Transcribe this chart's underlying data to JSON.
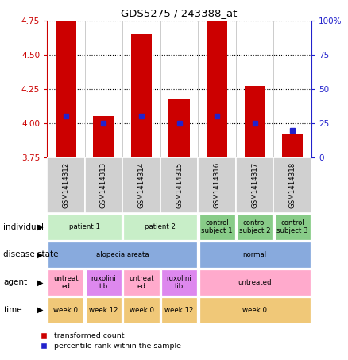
{
  "title": "GDS5275 / 243388_at",
  "samples": [
    "GSM1414312",
    "GSM1414313",
    "GSM1414314",
    "GSM1414315",
    "GSM1414316",
    "GSM1414317",
    "GSM1414318"
  ],
  "transformed_counts": [
    4.75,
    4.05,
    4.65,
    4.18,
    4.75,
    4.27,
    3.92
  ],
  "percentile_ranks": [
    30,
    25,
    30,
    25,
    30,
    25,
    20
  ],
  "ylim_left": [
    3.75,
    4.75
  ],
  "yticks_left": [
    3.75,
    4.0,
    4.25,
    4.5,
    4.75
  ],
  "ylim_right": [
    0,
    100
  ],
  "yticks_right": [
    0,
    25,
    50,
    75,
    100
  ],
  "bar_color": "#cc0000",
  "dot_color": "#2222cc",
  "bar_bottom": 3.75,
  "bar_width": 0.55,
  "sample_label_color": "#888888",
  "annotation_rows": [
    {
      "key": "individual",
      "label": "individual",
      "groups": [
        {
          "cols": [
            0,
            1
          ],
          "text": "patient 1",
          "color": "#c8eec8"
        },
        {
          "cols": [
            2,
            3
          ],
          "text": "patient 2",
          "color": "#c8eec8"
        },
        {
          "cols": [
            4
          ],
          "text": "control\nsubject 1",
          "color": "#88cc88"
        },
        {
          "cols": [
            5
          ],
          "text": "control\nsubject 2",
          "color": "#88cc88"
        },
        {
          "cols": [
            6
          ],
          "text": "control\nsubject 3",
          "color": "#88cc88"
        }
      ]
    },
    {
      "key": "disease_state",
      "label": "disease state",
      "groups": [
        {
          "cols": [
            0,
            1,
            2,
            3
          ],
          "text": "alopecia areata",
          "color": "#88aadd"
        },
        {
          "cols": [
            4,
            5,
            6
          ],
          "text": "normal",
          "color": "#88aadd"
        }
      ]
    },
    {
      "key": "agent",
      "label": "agent",
      "groups": [
        {
          "cols": [
            0
          ],
          "text": "untreat\ned",
          "color": "#ffaacc"
        },
        {
          "cols": [
            1
          ],
          "text": "ruxolini\ntib",
          "color": "#dd88ee"
        },
        {
          "cols": [
            2
          ],
          "text": "untreat\ned",
          "color": "#ffaacc"
        },
        {
          "cols": [
            3
          ],
          "text": "ruxolini\ntib",
          "color": "#dd88ee"
        },
        {
          "cols": [
            4,
            5,
            6
          ],
          "text": "untreated",
          "color": "#ffaacc"
        }
      ]
    },
    {
      "key": "time",
      "label": "time",
      "groups": [
        {
          "cols": [
            0
          ],
          "text": "week 0",
          "color": "#f0c878"
        },
        {
          "cols": [
            1
          ],
          "text": "week 12",
          "color": "#f0c878"
        },
        {
          "cols": [
            2
          ],
          "text": "week 0",
          "color": "#f0c878"
        },
        {
          "cols": [
            3
          ],
          "text": "week 12",
          "color": "#f0c878"
        },
        {
          "cols": [
            4,
            5,
            6
          ],
          "text": "week 0",
          "color": "#f0c878"
        }
      ]
    }
  ],
  "legend": [
    {
      "color": "#cc0000",
      "label": "transformed count"
    },
    {
      "color": "#2222cc",
      "label": "percentile rank within the sample"
    }
  ],
  "bg_color": "#ffffff",
  "axis_color_left": "#cc0000",
  "axis_color_right": "#2222cc",
  "grid_linestyle": "dotted",
  "grid_linewidth": 0.8
}
